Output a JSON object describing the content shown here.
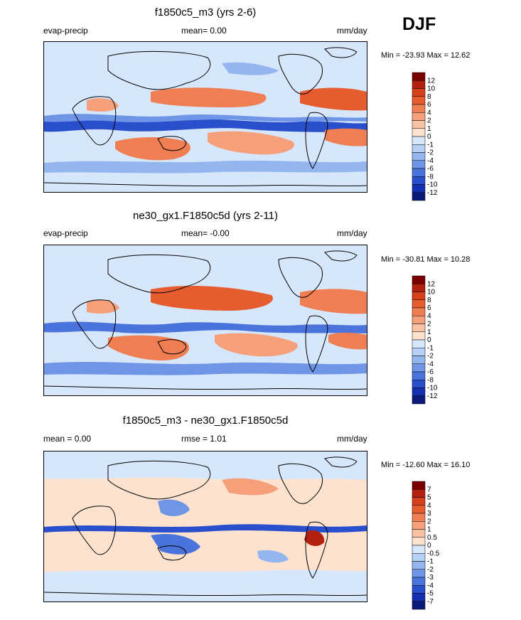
{
  "season": "DJF",
  "colors": {
    "map_fill": "#d6e6fb",
    "land_line": "#000000"
  },
  "chart_data": [
    {
      "type": "heatmap",
      "title": "f1850c5_m3 (yrs 2-6)",
      "variable": "evap-precip",
      "mean_text": "mean=  0.00",
      "units": "mm/day",
      "min": -23.93,
      "max": 12.62,
      "minmax_text": "Min = -23.93 Max =  12.62",
      "levels": [
        "12",
        "10",
        "8",
        "6",
        "4",
        "2",
        "1",
        "0",
        "-1",
        "-2",
        "-4",
        "-6",
        "-8",
        "-10",
        "-12"
      ],
      "colors": [
        "#7a0000",
        "#b3200d",
        "#d6401a",
        "#e65c2e",
        "#ef7e52",
        "#f5a07a",
        "#f9c3a3",
        "#fde3cf",
        "#d6e6fb",
        "#b7d0f5",
        "#94b6ef",
        "#6e95e6",
        "#4a73db",
        "#2a4fcc",
        "#1230b0",
        "#0a1a7a"
      ]
    },
    {
      "type": "heatmap",
      "title": "ne30_gx1.F1850c5d (yrs 2-11)",
      "variable": "evap-precip",
      "mean_text": "mean=  -0.00",
      "units": "mm/day",
      "min": -30.81,
      "max": 10.28,
      "minmax_text": "Min = -30.81 Max =  10.28",
      "levels": [
        "12",
        "10",
        "8",
        "6",
        "4",
        "2",
        "1",
        "0",
        "-1",
        "-2",
        "-4",
        "-6",
        "-8",
        "-10",
        "-12"
      ],
      "colors": [
        "#7a0000",
        "#b3200d",
        "#d6401a",
        "#e65c2e",
        "#ef7e52",
        "#f5a07a",
        "#f9c3a3",
        "#fde3cf",
        "#d6e6fb",
        "#b7d0f5",
        "#94b6ef",
        "#6e95e6",
        "#4a73db",
        "#2a4fcc",
        "#1230b0",
        "#0a1a7a"
      ]
    },
    {
      "type": "heatmap",
      "title": "f1850c5_m3 - ne30_gx1.F1850c5d",
      "variable": "",
      "mean_text": "mean =   0.00",
      "rmse_text": "rmse =   1.01",
      "units": "mm/day",
      "min": -12.6,
      "max": 16.1,
      "minmax_text": "Min = -12.60 Max =  16.10",
      "levels": [
        "7",
        "5",
        "4",
        "3",
        "2",
        "1",
        "0.5",
        "0",
        "-0.5",
        "-1",
        "-2",
        "-3",
        "-4",
        "-5",
        "-7"
      ],
      "colors": [
        "#7a0000",
        "#b3200d",
        "#d6401a",
        "#e65c2e",
        "#ef7e52",
        "#f5a07a",
        "#f9c3a3",
        "#fde3cf",
        "#d6e6fb",
        "#b7d0f5",
        "#94b6ef",
        "#6e95e6",
        "#4a73db",
        "#2a4fcc",
        "#1230b0",
        "#0a1a7a"
      ]
    }
  ]
}
